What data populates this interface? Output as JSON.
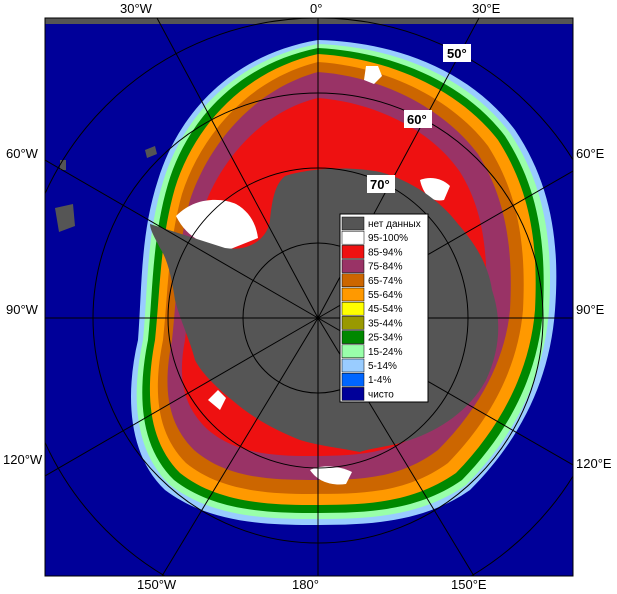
{
  "map": {
    "lon_labels": {
      "top": [
        "30°W",
        "0°",
        "30°E"
      ],
      "left": [
        "60°W",
        "90°W",
        "120°W"
      ],
      "right": [
        "60°E",
        "90°E",
        "120°E"
      ],
      "bottom": [
        "150°W",
        "180°",
        "150°E"
      ]
    },
    "lat_labels": [
      "50°",
      "60°",
      "70°"
    ]
  },
  "legend": {
    "items": [
      {
        "label": "нет данных",
        "color": "#555555"
      },
      {
        "label": "95-100%",
        "color": "#ffffff"
      },
      {
        "label": "85-94%",
        "color": "#ee1111"
      },
      {
        "label": "75-84%",
        "color": "#993366"
      },
      {
        "label": "65-74%",
        "color": "#cc6600"
      },
      {
        "label": "55-64%",
        "color": "#ff9900"
      },
      {
        "label": "45-54%",
        "color": "#ffff00"
      },
      {
        "label": "35-44%",
        "color": "#999900"
      },
      {
        "label": "25-34%",
        "color": "#008800"
      },
      {
        "label": "15-24%",
        "color": "#99ffaa"
      },
      {
        "label": "5-14%",
        "color": "#99ccff"
      },
      {
        "label": "1-4%",
        "color": "#0066ff"
      },
      {
        "label": "чисто",
        "color": "#000099"
      }
    ]
  }
}
